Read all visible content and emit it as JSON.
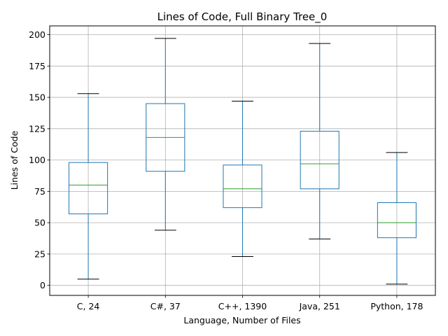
{
  "chart_data": {
    "type": "box",
    "title": "Lines of Code, Full Binary Tree_0",
    "xlabel": "Language, Number of Files",
    "ylabel": "Lines of Code",
    "ylim": [
      -8,
      207
    ],
    "yticks": [
      0,
      25,
      50,
      75,
      100,
      125,
      150,
      175,
      200
    ],
    "grid": true,
    "categories": [
      "C, 24",
      "C#, 37",
      "C++, 1390",
      "Java, 251",
      "Python, 178"
    ],
    "boxes": [
      {
        "label": "C, 24",
        "whisker_low": 5,
        "q1": 57,
        "median": 80,
        "q3": 98,
        "whisker_high": 153
      },
      {
        "label": "C#, 37",
        "whisker_low": 44,
        "q1": 91,
        "median": 118,
        "q3": 145,
        "whisker_high": 197
      },
      {
        "label": "C++, 1390",
        "whisker_low": 23,
        "q1": 62,
        "median": 77,
        "q3": 96,
        "whisker_high": 147
      },
      {
        "label": "Java, 251",
        "whisker_low": 37,
        "q1": 77,
        "median": 97,
        "q3": 123,
        "whisker_high": 193
      },
      {
        "label": "Python, 178",
        "whisker_low": 1,
        "q1": 38,
        "median": 50,
        "q3": 66,
        "whisker_high": 106
      }
    ],
    "colors": {
      "box": "#1f77b4",
      "median": "#2ca02c",
      "cap": "#000000",
      "grid": "#b0b0b0"
    }
  }
}
